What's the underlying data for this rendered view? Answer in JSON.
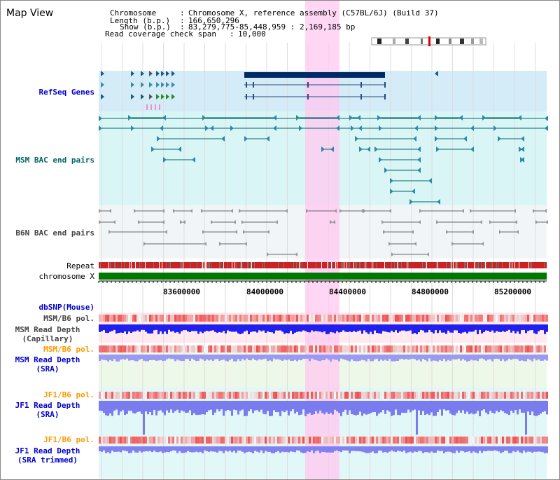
{
  "view": {
    "title": "Map View",
    "header": {
      "chromosome_label": "Chromosome",
      "chromosome_value": "Chromosome X, reference assembly (C57BL/6J) (Build 37)",
      "length_label": "Length (b.p.)",
      "length_value": "166,650,296",
      "show_label": "Show (b.p.)",
      "show_value": "83,279,775-85,448,959 : 2,169,185 bp",
      "coverage_label": "Read coverage check span",
      "coverage_value": "10,000"
    }
  },
  "tracks": {
    "refseq": "RefSeq Genes",
    "msm_bac": "MSM BAC end pairs",
    "b6n_bac": "B6N BAC end pairs",
    "repeat": "Repeat",
    "chromosome": "chromosome X",
    "dbsnp": "dbSNP(Mouse)",
    "msm_b6_pol_1": "MSM/B6 pol.",
    "msm_depth_cap_1": "MSM Read Depth",
    "msm_depth_cap_2": "(Capillary)",
    "msm_b6_pol_2": "MSM/B6 pol.",
    "msm_depth_sra_1": "MSM Read Depth",
    "msm_depth_sra_2": "(SRA)",
    "jf1_b6_pol_1": "JF1/B6 pol.",
    "jf1_depth_sra_1": "JF1 Read Depth",
    "jf1_depth_sra_2": "(SRA)",
    "jf1_b6_pol_2": "JF1/B6 pol.",
    "jf1_trim_1": "JF1 Read Depth",
    "jf1_trim_2": "(SRA trimmed)"
  },
  "axis": {
    "ticks": [
      "83600000",
      "84000000",
      "84400000",
      "84800000",
      "85200000"
    ]
  },
  "colors": {
    "highlight": "#ffc8f0",
    "refseq_bg": "#d4ecf8",
    "msm_bg": "#d9f5f5",
    "b6n_bg": "#f2f5f8",
    "gene_line": "#006666",
    "refseq_gene": "#002a66",
    "chromosome_bar": "#007700",
    "depth_blue": "#2020ee",
    "depth_light": "#7b7bf0",
    "pol_red": "#ee4040"
  }
}
